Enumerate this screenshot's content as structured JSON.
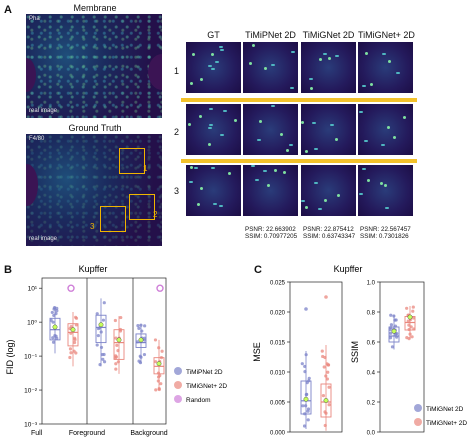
{
  "panel_a": {
    "label": "A",
    "membrane_title": "Membrane",
    "membrane_tag": "Pha",
    "membrane_footer": "real image",
    "gt_title": "Ground Truth",
    "gt_tag": "F4/80",
    "gt_footer": "real image",
    "roi_labels": [
      "1",
      "2",
      "3"
    ],
    "columns": [
      "GT",
      "TiMiPNet 2D",
      "TiMiGNet 2D",
      "TiMiGNet+ 2D"
    ],
    "rows": [
      "1",
      "2",
      "3"
    ],
    "metrics": [
      {
        "psnr": "PSNR: 22.663902",
        "ssim": "SSIM: 0.70977205"
      },
      {
        "psnr": "PSNR: 22.875412",
        "ssim": "SSIM: 0.63743347"
      },
      {
        "psnr": "PSNR: 22.567457",
        "ssim": "SSIM: 0.7301826"
      }
    ]
  },
  "panel_b": {
    "label": "B",
    "title": "Kupffer",
    "ylabel": "FID (log)",
    "yticks": [
      "10¹",
      "10⁰",
      "10⁻¹",
      "10⁻²",
      "10⁻³"
    ],
    "groups": [
      "Full",
      "Foreground",
      "Background"
    ],
    "legend": [
      "TiMiPNet 2D",
      "TiMiGNet+ 2D",
      "Random"
    ],
    "colors": {
      "timipnet": "#7b82c8",
      "timignetplus": "#e9877d",
      "random": "#cf7fd8"
    }
  },
  "panel_c": {
    "label": "C",
    "title": "Kupffer",
    "mse_ylabel": "MSE",
    "ssim_ylabel": "SSIM",
    "mse_ticks": [
      "0.025",
      "0.020",
      "0.015",
      "0.010",
      "0.005",
      "0.000"
    ],
    "ssim_ticks": [
      "1.0",
      "0.8",
      "0.6",
      "0.4",
      "0.2",
      "0.0"
    ],
    "legend": [
      "TiMiGNet 2D",
      "TiMiGNet+ 2D"
    ],
    "colors": {
      "timignet": "#7b82c8",
      "timignetplus": "#e9877d"
    }
  },
  "chart_data": [
    {
      "type": "box",
      "title": "Kupffer",
      "ylabel": "FID (log)",
      "yscale": "log",
      "ylim": [
        0.001,
        20
      ],
      "categories": [
        "Full",
        "Foreground",
        "Background"
      ],
      "series": [
        {
          "name": "TiMiPNet 2D",
          "medians": [
            0.6,
            0.7,
            0.25
          ]
        },
        {
          "name": "TiMiGNet+ 2D",
          "medians": [
            0.5,
            0.25,
            0.05
          ]
        },
        {
          "name": "Random",
          "values": [
            10,
            null,
            10
          ]
        }
      ]
    },
    {
      "type": "box",
      "title": "Kupffer",
      "ylabel": "MSE",
      "ylim": [
        0,
        0.025
      ],
      "series": [
        {
          "name": "TiMiGNet 2D",
          "median": 0.0052
        },
        {
          "name": "TiMiGNet+ 2D",
          "median": 0.005
        }
      ]
    },
    {
      "type": "box",
      "ylabel": "SSIM",
      "ylim": [
        0,
        1.0
      ],
      "series": [
        {
          "name": "TiMiGNet 2D",
          "median": 0.64
        },
        {
          "name": "TiMiGNet+ 2D",
          "median": 0.73
        }
      ]
    }
  ]
}
